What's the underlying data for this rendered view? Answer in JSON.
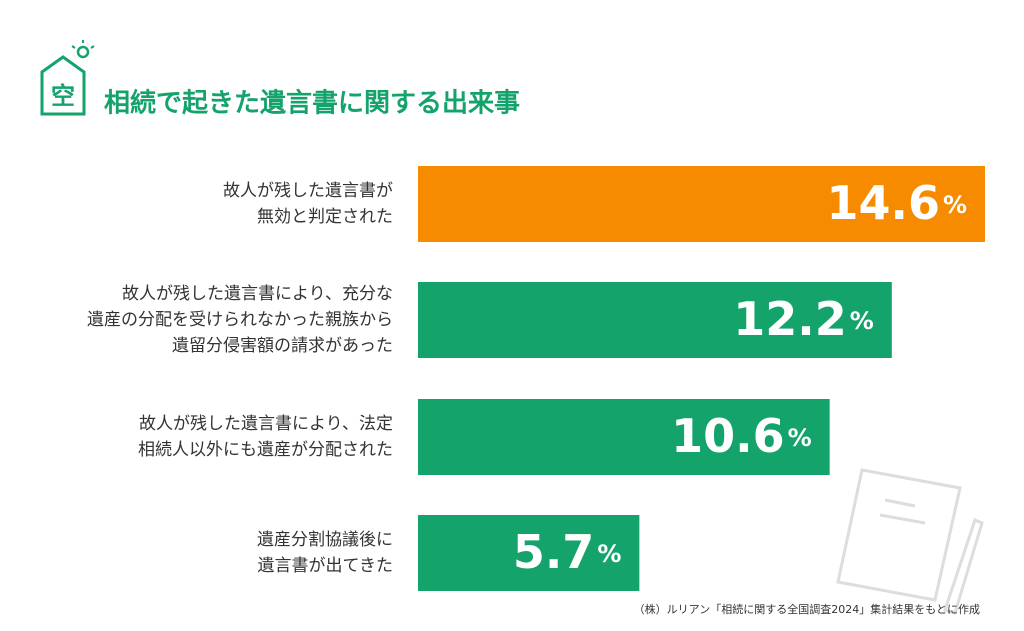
{
  "logo": "空",
  "chart_data": {
    "type": "hbar",
    "title": "相続で起きた遺言書に関する出来事",
    "categories": [
      [
        "故人が残した遺言書が",
        "無効と判定された"
      ],
      [
        "故人が残した遺言書により、充分な",
        "遺産の分配を受けられなかった親族から",
        "遺留分侵害額の請求があった"
      ],
      [
        "故人が残した遺言書により、法定",
        "相続人以外にも遺産が分配された"
      ],
      [
        "遺産分割協議後に",
        "遺言書が出てきた"
      ]
    ],
    "values": [
      14.6,
      12.2,
      10.6,
      5.7
    ],
    "value_labels": [
      "14.6%",
      "12.2%",
      "10.6%",
      "5.7%"
    ],
    "colors": [
      "#f78b00",
      "#13a36b",
      "#13a36b",
      "#13a36b"
    ],
    "source": "（株）ルリアン「相続に関する全国調査2024」集計結果をもとに作成"
  }
}
